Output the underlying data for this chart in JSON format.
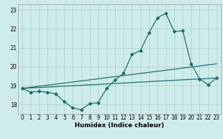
{
  "title": "",
  "xlabel": "Humidex (Indice chaleur)",
  "bg_color": "#ceecea",
  "grid_color": "#aacfcd",
  "line_color": "#1a6b6b",
  "xlim": [
    -0.5,
    23.5
  ],
  "ylim": [
    17.5,
    23.3
  ],
  "yticks": [
    18,
    19,
    20,
    21,
    22,
    23
  ],
  "xticks": [
    0,
    1,
    2,
    3,
    4,
    5,
    6,
    7,
    8,
    9,
    10,
    11,
    12,
    13,
    14,
    15,
    16,
    17,
    18,
    19,
    20,
    21,
    22,
    23
  ],
  "series1_x": [
    0,
    1,
    2,
    3,
    4,
    5,
    6,
    7,
    8,
    9,
    10,
    11,
    12,
    13,
    14,
    15,
    16,
    17,
    18,
    19,
    20,
    21,
    22,
    23
  ],
  "series1_y": [
    18.85,
    18.65,
    18.7,
    18.65,
    18.55,
    18.15,
    17.82,
    17.72,
    18.05,
    18.1,
    18.85,
    19.3,
    19.65,
    20.65,
    20.85,
    21.78,
    22.58,
    22.82,
    21.85,
    21.9,
    20.15,
    19.35,
    19.05,
    19.4
  ],
  "series2_x": [
    0,
    23
  ],
  "series2_y": [
    18.85,
    19.4
  ],
  "series3_x": [
    0,
    23
  ],
  "series3_y": [
    18.85,
    20.15
  ],
  "marker": "D",
  "markersize": 2.0,
  "linewidth": 0.9,
  "tick_fontsize": 5.5,
  "xlabel_fontsize": 6.5
}
